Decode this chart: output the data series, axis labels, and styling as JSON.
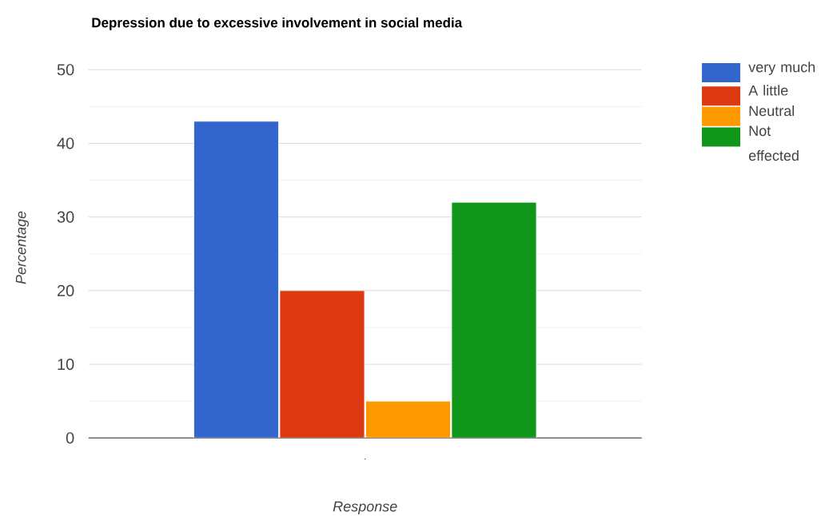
{
  "chart_data": {
    "type": "bar",
    "title": "Depression due to excessive involvement in social media",
    "xlabel": "Response",
    "ylabel": "Percentage",
    "categories": [
      "."
    ],
    "series": [
      {
        "name": "very much",
        "color": "#3366cc",
        "values": [
          43
        ]
      },
      {
        "name": "A little",
        "color": "#dc3912",
        "values": [
          20
        ]
      },
      {
        "name": "Neutral",
        "color": "#ff9900",
        "values": [
          5
        ]
      },
      {
        "name": "Not effected",
        "color": "#109618",
        "values": [
          32
        ]
      }
    ],
    "ylim": [
      0,
      50
    ],
    "yticks": [
      0,
      10,
      20,
      30,
      40,
      50
    ],
    "grid": "y",
    "legend": "right"
  }
}
